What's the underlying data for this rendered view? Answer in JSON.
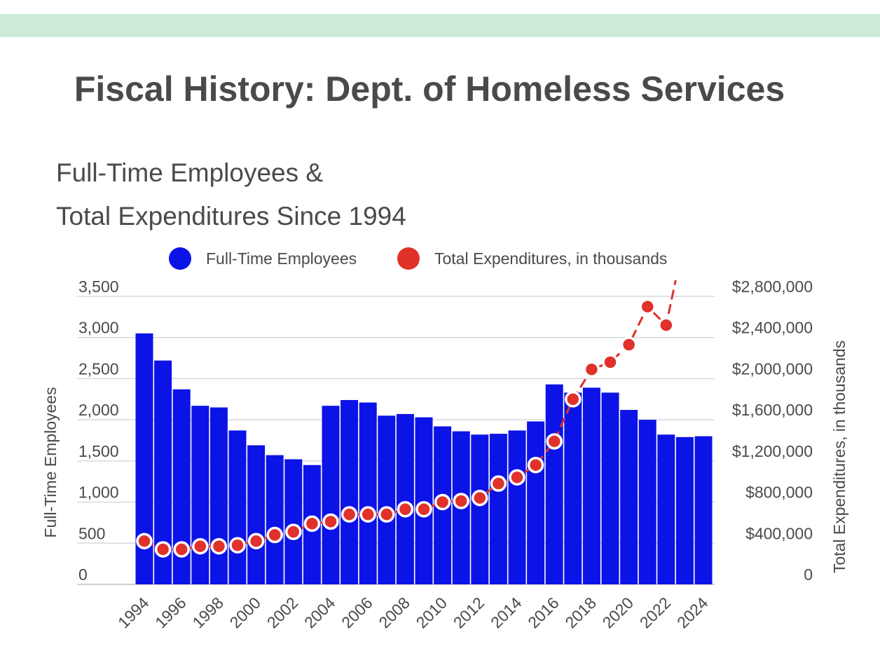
{
  "header": {
    "title": "Fiscal History: Dept. of Homeless Services",
    "subtitle_line1": "Full-Time Employees &",
    "subtitle_line2": "Total Expenditures Since 1994"
  },
  "colors": {
    "band": "#cdebd9",
    "bars": "#0c13e6",
    "line": "#e0312b",
    "grid": "#d9d9d9",
    "text": "#4a4a4a"
  },
  "chart_data": {
    "type": "bar",
    "x": [
      1994,
      1995,
      1996,
      1997,
      1998,
      1999,
      2000,
      2001,
      2002,
      2003,
      2004,
      2005,
      2006,
      2007,
      2008,
      2009,
      2010,
      2011,
      2012,
      2013,
      2014,
      2015,
      2016,
      2017,
      2018,
      2019,
      2020,
      2021,
      2022,
      2023,
      2024
    ],
    "x_tick_labels": [
      "1994",
      "1996",
      "1998",
      "2000",
      "2002",
      "2004",
      "2006",
      "2008",
      "2010",
      "2012",
      "2014",
      "2016",
      "2018",
      "2020",
      "2022",
      "2024"
    ],
    "series": [
      {
        "name": "Full-Time Employees",
        "type": "bar",
        "axis": "left",
        "values": [
          3050,
          2720,
          2370,
          2170,
          2150,
          1870,
          1690,
          1570,
          1520,
          1450,
          2170,
          2240,
          2210,
          2050,
          2070,
          2030,
          1920,
          1860,
          1820,
          1830,
          1870,
          1980,
          2430,
          2330,
          2390,
          2330,
          2120,
          2000,
          1820,
          1790,
          1800
        ]
      },
      {
        "name": "Total Expenditures, in thousands",
        "type": "line",
        "axis": "right",
        "values": [
          420000,
          340000,
          340000,
          370000,
          370000,
          380000,
          420000,
          480000,
          510000,
          590000,
          610000,
          680000,
          680000,
          680000,
          730000,
          730000,
          800000,
          810000,
          840000,
          980000,
          1040000,
          1160000,
          1390000,
          1800000,
          2090000,
          2160000,
          2330000,
          2700000,
          2520000,
          null,
          null
        ]
      }
    ],
    "line_offscale_end": {
      "x": 2023,
      "direction": "up"
    },
    "legend": {
      "placement": "top"
    },
    "left_axis": {
      "title": "Full-Time Employees",
      "ylim": [
        0,
        3500
      ],
      "ticks": [
        0,
        500,
        1000,
        1500,
        2000,
        2500,
        3000,
        3500
      ],
      "tick_labels": [
        "0",
        "500",
        "1,000",
        "1,500",
        "2,000",
        "2,500",
        "3,000",
        "3,500"
      ]
    },
    "right_axis": {
      "title": "Total Expenditures, in thousands",
      "ylim": [
        0,
        2800000
      ],
      "ticks": [
        0,
        400000,
        800000,
        1200000,
        1600000,
        2000000,
        2400000,
        2800000
      ],
      "tick_labels": [
        "0",
        "$400,000",
        "$800,000",
        "$1,200,000",
        "$1,600,000",
        "$2,000,000",
        "$2,400,000",
        "$2,800,000"
      ]
    },
    "grid": true
  }
}
